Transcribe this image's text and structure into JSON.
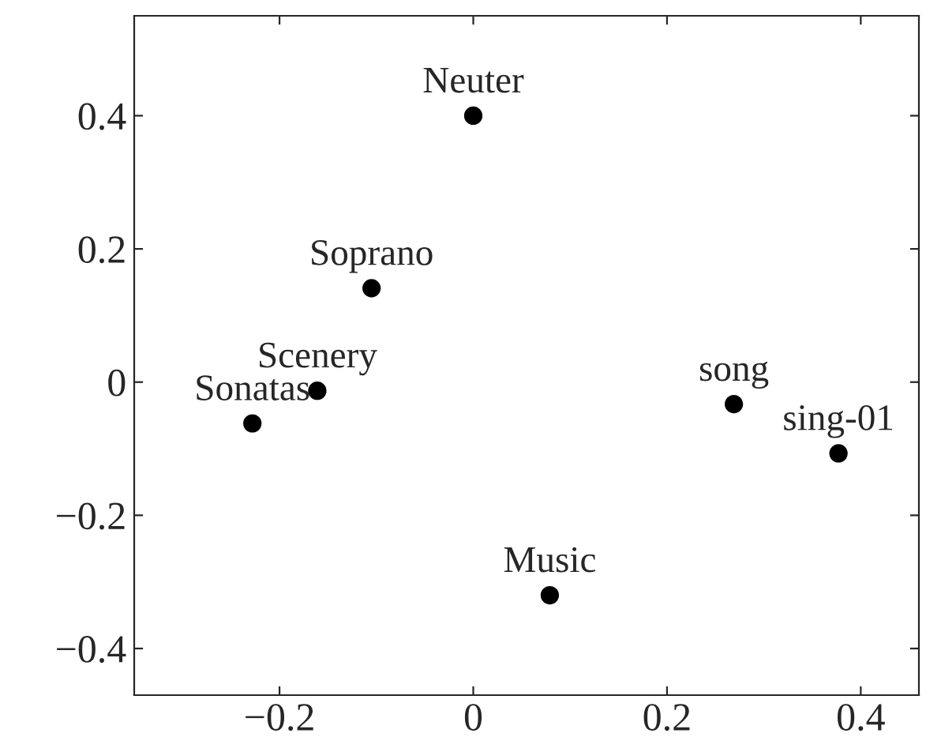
{
  "chart_data": {
    "type": "scatter",
    "x": [
      0,
      -0.105,
      -0.161,
      -0.228,
      0.269,
      0.377,
      0.079
    ],
    "values": [
      0.4,
      0.141,
      -0.013,
      -0.062,
      -0.033,
      -0.107,
      -0.32
    ],
    "color": "#000000",
    "marker": "circle",
    "annotations": [
      {
        "text": "Neuter",
        "x": 0,
        "y": 0.4
      },
      {
        "text": "Soprano",
        "x": -0.105,
        "y": 0.141
      },
      {
        "text": "Scenery",
        "x": -0.161,
        "y": -0.013
      },
      {
        "text": "Sonatas",
        "x": -0.228,
        "y": -0.062
      },
      {
        "text": "song",
        "x": 0.269,
        "y": -0.033
      },
      {
        "text": "sing-01",
        "x": 0.377,
        "y": -0.107
      },
      {
        "text": "Music",
        "x": 0.079,
        "y": -0.32
      }
    ],
    "xlim": [
      -0.35,
      0.46
    ],
    "ylim": [
      -0.47,
      0.55
    ],
    "xticks": [
      {
        "value": -0.2,
        "label": "−0.2"
      },
      0,
      0.2,
      0.4
    ],
    "yticks": [
      {
        "value": -0.4,
        "label": "−0.4"
      },
      {
        "value": -0.2,
        "label": "−0.2"
      },
      0,
      0.2,
      0.4
    ],
    "grid": false,
    "legend": false
  }
}
